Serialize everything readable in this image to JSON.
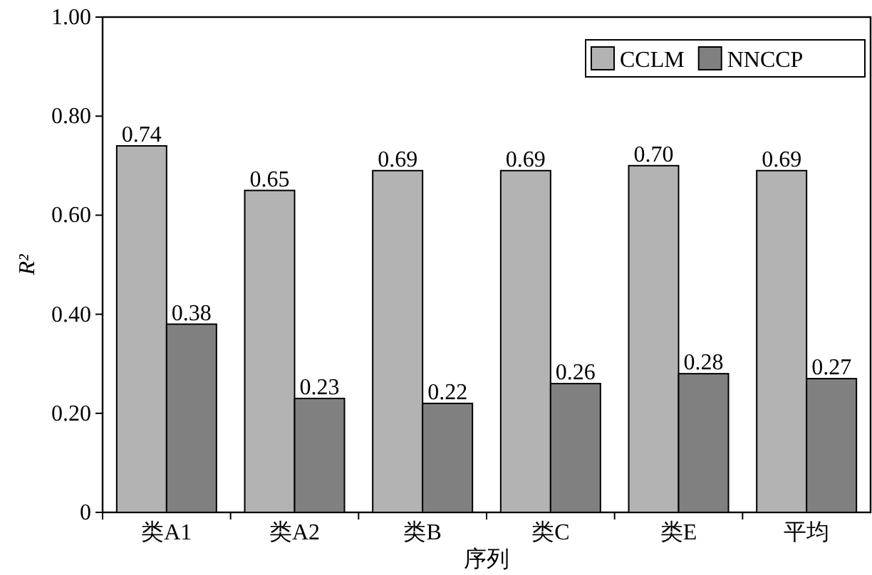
{
  "chart_data": {
    "type": "bar",
    "xlabel": "序列",
    "ylabel": "R²",
    "categories": [
      "类A1",
      "类A2",
      "类B",
      "类C",
      "类E",
      "平均"
    ],
    "series": [
      {
        "name": "CCLM",
        "color": "#b3b3b3",
        "values": [
          0.74,
          0.65,
          0.69,
          0.69,
          0.7,
          0.69
        ],
        "value_labels": [
          "0.74",
          "0.65",
          "0.69",
          "0.69",
          "0.70",
          "0.69"
        ]
      },
      {
        "name": "NNCCP",
        "color": "#808080",
        "values": [
          0.38,
          0.23,
          0.22,
          0.26,
          0.28,
          0.27
        ],
        "value_labels": [
          "0.38",
          "0.23",
          "0.22",
          "0.26",
          "0.28",
          "0.27"
        ]
      }
    ],
    "ylim": [
      0,
      1
    ],
    "yticks": [
      0,
      {
        "value": 0.2,
        "label": "0.20"
      },
      {
        "value": 0.4,
        "label": "0.40"
      },
      {
        "value": 0.6,
        "label": "0.60"
      },
      {
        "value": 0.8,
        "label": "0.80"
      },
      {
        "value": 1.0,
        "label": "1.00"
      }
    ],
    "legend": "top right"
  }
}
